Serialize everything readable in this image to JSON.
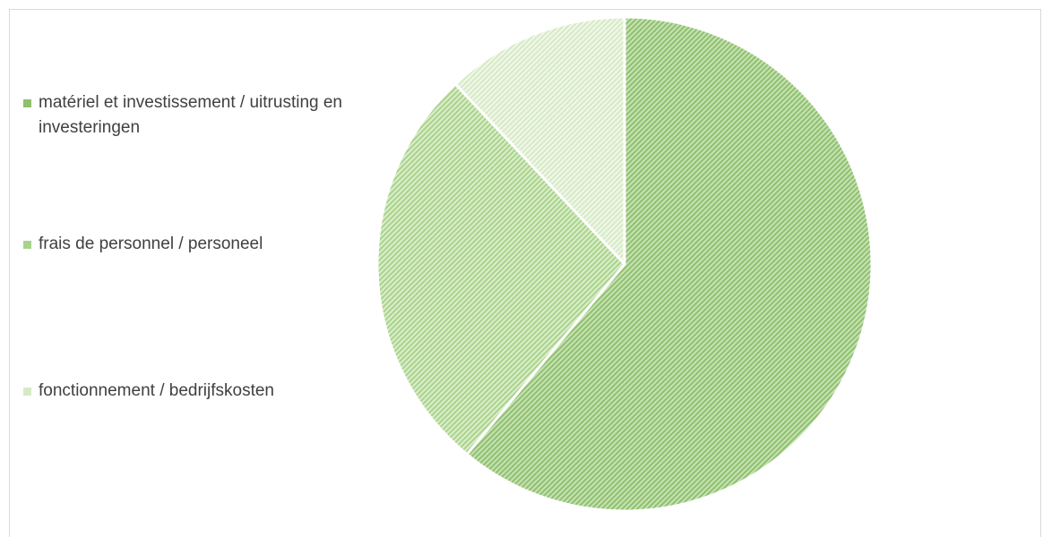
{
  "chart_data": {
    "type": "pie",
    "title": "",
    "legend_position": "left",
    "series": [
      {
        "values": [
          61,
          27,
          12
        ],
        "categories": [
          "matériel et investissement / uitrusting en investeringen",
          "frais de personnel / personeel",
          "fonctionnement / bedrijfskosten"
        ]
      }
    ],
    "colors": [
      "#9bc97f",
      "#c3e2a8",
      "#e4f1d8"
    ],
    "pattern": "diagonal-hatch"
  },
  "legend": {
    "items": [
      {
        "label": "matériel et investissement / uitrusting en investeringen"
      },
      {
        "label": "frais de personnel / personeel"
      },
      {
        "label": "fonctionnement / bedrijfskosten"
      }
    ]
  }
}
